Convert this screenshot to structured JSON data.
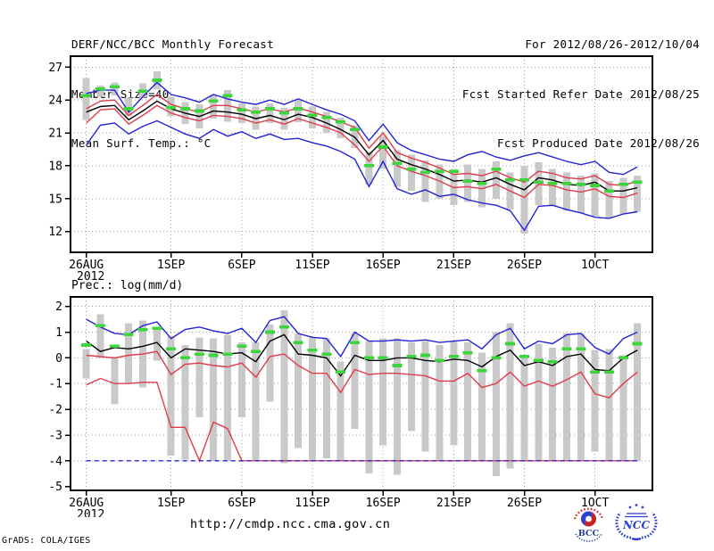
{
  "header": {
    "left_lines": [
      "DERF/NCC/BCC Monthly Forecast",
      "Member Size=40",
      "Mean Surf. Temp.: °C"
    ],
    "right_lines": [
      "For 2012/08/26-2012/10/04",
      "Fcst Started Refer Date 2012/08/25",
      "Fcst Produced Date 2012/08/26"
    ]
  },
  "footer": {
    "url": "http://cmdp.ncc.cma.gov.cn",
    "credit": "GrADS: COLA/IGES",
    "logos": [
      {
        "label": "BCC"
      },
      {
        "label": "NCC"
      }
    ]
  },
  "colors": {
    "line_blue": "#2323d6",
    "line_red": "#e13b4b",
    "line_black": "#000000",
    "obs_green": "#3cd63c",
    "bar_gray": "#c9c9c9",
    "grid_gray": "#a0a0a0",
    "frame_black": "#000000",
    "logo_bcc_blue": "#1d3f96",
    "logo_bcc_red": "#cc2020",
    "logo_ncc_blue": "#2b3fd0"
  },
  "chart_data": [
    {
      "type": "ensemble-line",
      "name": "temperature",
      "title": "",
      "variable": "Mean Surf. Temp.: °C",
      "x_start": "26AUG2012",
      "x_days": 40,
      "ylim": [
        10.1,
        28.0
      ],
      "grid": true,
      "y_ticks": [
        {
          "v": 27,
          "label": "27",
          "grid": true
        },
        {
          "v": 24,
          "label": "24",
          "grid": true
        },
        {
          "v": 21,
          "label": "21",
          "grid": true
        },
        {
          "v": 18,
          "label": "18",
          "grid": true
        },
        {
          "v": 15,
          "label": "15",
          "grid": true
        },
        {
          "v": 12,
          "label": "12",
          "grid": true
        }
      ],
      "x_ticks": [
        {
          "day": 0,
          "label": "26AUG",
          "sub": "2012"
        },
        {
          "day": 6,
          "label": "1SEP"
        },
        {
          "day": 11,
          "label": "6SEP"
        },
        {
          "day": 16,
          "label": "11SEP"
        },
        {
          "day": 21,
          "label": "16SEP"
        },
        {
          "day": 26,
          "label": "21SEP"
        },
        {
          "day": 31,
          "label": "26SEP"
        },
        {
          "day": 36,
          "label": "1OCT"
        }
      ],
      "series": [
        {
          "name": "ensemble-max",
          "color": "line_blue",
          "dash": null,
          "values": [
            24.6,
            24.9,
            24.9,
            22.9,
            24.3,
            25.6,
            24.5,
            24.2,
            23.8,
            24.5,
            24.1,
            23.8,
            23.6,
            24.0,
            23.6,
            24.1,
            23.6,
            23.1,
            22.7,
            22.1,
            20.3,
            21.8,
            20.1,
            19.4,
            19.0,
            18.6,
            18.4,
            19.0,
            19.3,
            18.8,
            18.5,
            18.9,
            19.2,
            18.8,
            18.4,
            18.1,
            18.4,
            17.4,
            17.2,
            17.9
          ]
        },
        {
          "name": "upper-quartile",
          "color": "line_red",
          "dash": null,
          "values": [
            23.2,
            23.9,
            24.0,
            22.6,
            23.5,
            24.5,
            23.6,
            23.2,
            22.9,
            23.5,
            23.5,
            23.2,
            22.9,
            23.2,
            22.9,
            23.3,
            22.9,
            22.5,
            22.0,
            21.5,
            19.6,
            21.0,
            19.2,
            18.7,
            18.3,
            17.8,
            17.2,
            17.3,
            17.1,
            17.5,
            16.9,
            16.5,
            17.5,
            17.3,
            16.9,
            16.8,
            17.1,
            16.3,
            16.2,
            16.6
          ]
        },
        {
          "name": "ensemble-mean",
          "color": "line_black",
          "dash": null,
          "values": [
            22.9,
            23.4,
            23.5,
            22.2,
            23.0,
            23.9,
            23.2,
            22.8,
            22.5,
            23.0,
            22.9,
            22.7,
            22.3,
            22.6,
            22.2,
            22.7,
            22.4,
            21.9,
            21.3,
            20.6,
            19.0,
            20.3,
            18.6,
            18.1,
            17.7,
            17.2,
            16.6,
            16.7,
            16.5,
            16.9,
            16.3,
            15.8,
            16.9,
            16.7,
            16.3,
            16.2,
            16.5,
            15.7,
            15.7,
            16.0
          ]
        },
        {
          "name": "lower-quartile",
          "color": "line_red",
          "dash": null,
          "values": [
            21.9,
            23.1,
            23.2,
            21.8,
            22.6,
            23.5,
            22.8,
            22.4,
            22.1,
            22.6,
            22.5,
            22.3,
            21.9,
            22.2,
            21.8,
            22.3,
            21.9,
            21.5,
            21.0,
            19.9,
            18.4,
            19.8,
            18.0,
            17.5,
            17.1,
            16.6,
            16.0,
            16.1,
            15.9,
            16.3,
            15.7,
            15.1,
            16.3,
            16.2,
            15.8,
            15.6,
            15.9,
            15.2,
            15.1,
            15.5
          ]
        },
        {
          "name": "ensemble-min",
          "color": "line_blue",
          "dash": null,
          "values": [
            19.9,
            21.7,
            21.9,
            20.9,
            21.6,
            22.1,
            21.5,
            20.9,
            20.5,
            21.3,
            20.7,
            21.1,
            20.5,
            20.9,
            20.4,
            20.5,
            20.1,
            19.8,
            19.3,
            18.6,
            16.1,
            18.4,
            15.9,
            15.4,
            15.8,
            15.2,
            15.4,
            14.9,
            14.6,
            14.4,
            13.9,
            12.1,
            14.3,
            14.4,
            14.0,
            13.7,
            13.3,
            13.2,
            13.6,
            13.8
          ]
        }
      ],
      "obs_dashes": [
        24.4,
        25.0,
        25.2,
        23.2,
        24.8,
        25.8,
        23.3,
        23.2,
        23.0,
        23.9,
        24.4,
        23.1,
        22.9,
        23.2,
        22.8,
        23.2,
        22.6,
        22.4,
        22.0,
        21.3,
        18.0,
        19.7,
        18.2,
        17.7,
        17.4,
        17.5,
        17.5,
        16.6,
        16.4,
        17.7,
        16.7,
        16.7,
        16.5,
        16.4,
        16.4,
        16.3,
        16.2,
        15.7,
        16.3,
        16.5
      ],
      "bars": [
        [
          22.2,
          26.0
        ],
        [
          24.3,
          25.3
        ],
        [
          24.4,
          25.6
        ],
        [
          22.5,
          24.2
        ],
        [
          24.2,
          25.5
        ],
        [
          25.0,
          26.6
        ],
        [
          22.5,
          24.3
        ],
        [
          21.8,
          23.8
        ],
        [
          21.4,
          23.6
        ],
        [
          22.3,
          24.5
        ],
        [
          22.0,
          24.9
        ],
        [
          21.9,
          23.7
        ],
        [
          21.3,
          23.4
        ],
        [
          21.9,
          23.7
        ],
        [
          21.3,
          23.3
        ],
        [
          22.0,
          24.0
        ],
        [
          21.4,
          23.4
        ],
        [
          21.0,
          22.9
        ],
        [
          20.5,
          22.4
        ],
        [
          19.6,
          21.7
        ],
        [
          16.3,
          19.3
        ],
        [
          17.7,
          20.7
        ],
        [
          16.1,
          19.4
        ],
        [
          15.7,
          19.0
        ],
        [
          14.7,
          18.5
        ],
        [
          15.0,
          18.1
        ],
        [
          14.4,
          17.7
        ],
        [
          14.7,
          18.1
        ],
        [
          14.2,
          17.7
        ],
        [
          15.0,
          18.4
        ],
        [
          14.0,
          17.4
        ],
        [
          11.8,
          18.0
        ],
        [
          14.4,
          18.3
        ],
        [
          14.3,
          17.7
        ],
        [
          13.9,
          17.4
        ],
        [
          13.7,
          17.1
        ],
        [
          13.4,
          17.3
        ],
        [
          13.2,
          16.6
        ],
        [
          13.6,
          16.9
        ],
        [
          13.8,
          17.1
        ]
      ]
    },
    {
      "type": "ensemble-line",
      "name": "precipitation",
      "title": "Prec.: log(mm/d)",
      "variable": "Prec.: log(mm/d)",
      "x_start": "26AUG2012",
      "x_days": 40,
      "ylim": [
        -5.15,
        2.37
      ],
      "grid": true,
      "y_ticks": [
        {
          "v": 2,
          "label": "2",
          "grid": true
        },
        {
          "v": 1,
          "label": "1",
          "grid": true
        },
        {
          "v": 0,
          "label": "0",
          "grid": true
        },
        {
          "v": -1,
          "label": "-1",
          "grid": true
        },
        {
          "v": -2,
          "label": "-2",
          "grid": true
        },
        {
          "v": -3,
          "label": "-3",
          "grid": true
        },
        {
          "v": -4,
          "label": "-4",
          "grid": true
        },
        {
          "v": -5,
          "label": "-5",
          "grid": false
        }
      ],
      "x_ticks": [
        {
          "day": 0,
          "label": "26AUG",
          "sub": "2012"
        },
        {
          "day": 6,
          "label": "1SEP"
        },
        {
          "day": 11,
          "label": "6SEP"
        },
        {
          "day": 16,
          "label": "11SEP"
        },
        {
          "day": 21,
          "label": "16SEP"
        },
        {
          "day": 26,
          "label": "21SEP"
        },
        {
          "day": 31,
          "label": "26SEP"
        },
        {
          "day": 36,
          "label": "1OCT"
        }
      ],
      "series": [
        {
          "name": "ensemble-max",
          "color": "line_blue",
          "dash": null,
          "values": [
            1.5,
            1.2,
            0.95,
            0.9,
            1.25,
            1.4,
            0.75,
            1.1,
            1.2,
            1.05,
            0.95,
            1.15,
            0.6,
            1.45,
            1.6,
            0.95,
            0.8,
            0.75,
            0.05,
            1.0,
            0.65,
            0.65,
            0.7,
            0.65,
            0.7,
            0.6,
            0.65,
            0.7,
            0.35,
            0.9,
            1.15,
            0.35,
            0.65,
            0.55,
            0.9,
            0.95,
            0.4,
            0.15,
            0.75,
            1.0
          ]
        },
        {
          "name": "ensemble-mean",
          "color": "line_black",
          "dash": null,
          "values": [
            0.65,
            0.25,
            0.4,
            0.35,
            0.45,
            0.6,
            0.0,
            0.35,
            0.3,
            0.25,
            0.15,
            0.2,
            -0.15,
            0.65,
            0.9,
            0.15,
            0.1,
            0.0,
            -0.7,
            0.1,
            -0.1,
            -0.1,
            0.0,
            0.0,
            -0.1,
            -0.15,
            -0.05,
            -0.1,
            -0.35,
            0.05,
            0.3,
            -0.3,
            -0.15,
            -0.3,
            0.05,
            0.15,
            -0.45,
            -0.5,
            0.0,
            0.3
          ]
        },
        {
          "name": "upper-quartile",
          "color": "line_red",
          "dash": null,
          "values": [
            0.1,
            0.05,
            0.0,
            0.1,
            0.15,
            0.25,
            -0.65,
            -0.25,
            -0.2,
            -0.3,
            -0.35,
            -0.2,
            -0.75,
            0.05,
            0.15,
            -0.3,
            -0.6,
            -0.6,
            -1.35,
            -0.45,
            -0.65,
            -0.6,
            -0.6,
            -0.65,
            -0.7,
            -0.9,
            -0.9,
            -0.6,
            -1.15,
            -1.0,
            -0.55,
            -1.1,
            -0.9,
            -1.1,
            -0.85,
            -0.55,
            -1.4,
            -1.55,
            -1.0,
            -0.55
          ]
        },
        {
          "name": "lower-quartile",
          "color": "line_red",
          "dash": null,
          "values": [
            -1.05,
            -0.8,
            -1.0,
            -1.0,
            -0.95,
            -0.95,
            -2.7,
            -2.7,
            -4.0,
            -2.5,
            -2.75,
            -4.0,
            -4.0,
            -4.0,
            -4.0,
            -4.0,
            -4.0,
            -4.0,
            -4.0,
            -4.0,
            -4.0,
            -4.0,
            -4.0,
            -4.0,
            -4.0,
            -4.0,
            -4.0,
            -4.0,
            -4.0,
            -4.0,
            -4.0,
            -4.0,
            -4.0,
            -4.0,
            -4.0,
            -4.0,
            -4.0,
            -4.0,
            -4.0,
            -4.0
          ]
        },
        {
          "name": "ensemble-min",
          "color": "line_blue",
          "dash": "5 4",
          "values": [
            -4.0,
            -4.0,
            -4.0,
            -4.0,
            -4.0,
            -4.0,
            -4.0,
            -4.0,
            -4.0,
            -4.0,
            -4.0,
            -4.0,
            -4.0,
            -4.0,
            -4.0,
            -4.0,
            -4.0,
            -4.0,
            -4.0,
            -4.0,
            -4.0,
            -4.0,
            -4.0,
            -4.0,
            -4.0,
            -4.0,
            -4.0,
            -4.0,
            -4.0,
            -4.0,
            -4.0,
            -4.0,
            -4.0,
            -4.0,
            -4.0,
            -4.0,
            -4.0,
            -4.0,
            -4.0,
            -4.0
          ]
        }
      ],
      "obs_dashes": [
        0.5,
        1.25,
        0.45,
        0.9,
        1.1,
        1.15,
        0.35,
        0.0,
        0.15,
        0.1,
        0.15,
        0.45,
        0.25,
        1.0,
        1.2,
        0.6,
        0.3,
        0.15,
        -0.55,
        0.6,
        0.0,
        0.0,
        -0.3,
        0.05,
        0.1,
        -0.1,
        0.05,
        0.2,
        -0.5,
        0.0,
        0.55,
        0.05,
        -0.1,
        -0.15,
        0.35,
        0.35,
        -0.55,
        -0.55,
        0.0,
        0.55
      ],
      "bars": [
        [
          -0.8,
          0.35
        ],
        [
          0.0,
          1.7
        ],
        [
          -1.8,
          0.0
        ],
        [
          -1.0,
          1.35
        ],
        [
          -1.15,
          1.45
        ],
        [
          -0.1,
          1.2
        ],
        [
          -3.8,
          0.85
        ],
        [
          -3.95,
          0.5
        ],
        [
          -2.3,
          0.8
        ],
        [
          -4.0,
          0.75
        ],
        [
          -4.0,
          0.9
        ],
        [
          -2.3,
          0.6
        ],
        [
          -4.0,
          0.6
        ],
        [
          -1.7,
          1.3
        ],
        [
          -4.1,
          1.85
        ],
        [
          -3.5,
          0.95
        ],
        [
          -4.0,
          0.8
        ],
        [
          -3.9,
          0.75
        ],
        [
          -4.0,
          -0.15
        ],
        [
          -2.75,
          0.95
        ],
        [
          -4.5,
          0.65
        ],
        [
          -3.4,
          0.75
        ],
        [
          -4.55,
          0.75
        ],
        [
          -2.85,
          0.6
        ],
        [
          -3.65,
          0.65
        ],
        [
          -4.0,
          0.5
        ],
        [
          -3.4,
          0.65
        ],
        [
          -4.0,
          0.6
        ],
        [
          -4.0,
          0.2
        ],
        [
          -4.6,
          1.0
        ],
        [
          -4.3,
          1.35
        ],
        [
          -4.0,
          0.1
        ],
        [
          -4.0,
          0.55
        ],
        [
          -4.0,
          0.4
        ],
        [
          -4.0,
          0.95
        ],
        [
          -4.0,
          0.95
        ],
        [
          -3.65,
          0.3
        ],
        [
          -4.0,
          0.35
        ],
        [
          -4.0,
          0.1
        ],
        [
          -4.0,
          1.35
        ]
      ]
    }
  ]
}
